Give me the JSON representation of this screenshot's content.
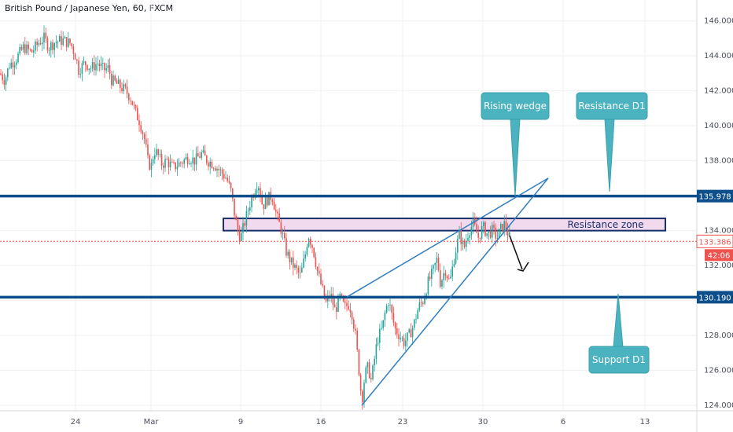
{
  "chart_data": {
    "type": "candlestick",
    "title": "British Pound / Japanese Yen, 60, FXCM",
    "ylim": [
      123.6,
      147.2
    ],
    "x_ticks": [
      "24",
      "Mar",
      "9",
      "16",
      "23",
      "30",
      "6",
      "13"
    ],
    "y_ticks": [
      "146.000",
      "144.000",
      "142.000",
      "140.000",
      "138.000",
      "136.000",
      "134.000",
      "132.000",
      "130.000",
      "128.000",
      "126.000",
      "124.000"
    ],
    "grid": true,
    "price_path": [
      [
        0,
        143.0
      ],
      [
        6,
        142.6
      ],
      [
        12,
        143.5
      ],
      [
        20,
        143.8
      ],
      [
        30,
        144.5
      ],
      [
        40,
        144.2
      ],
      [
        50,
        144.8
      ],
      [
        56,
        145.0
      ],
      [
        62,
        144.5
      ],
      [
        70,
        144.8
      ],
      [
        80,
        144.9
      ],
      [
        90,
        144.7
      ],
      [
        96,
        144.0
      ],
      [
        100,
        143.2
      ],
      [
        108,
        143.6
      ],
      [
        116,
        143.3
      ],
      [
        124,
        143.6
      ],
      [
        132,
        143.2
      ],
      [
        138,
        143.3
      ],
      [
        142,
        142.6
      ],
      [
        148,
        142.4
      ],
      [
        154,
        142.2
      ],
      [
        160,
        142.0
      ],
      [
        166,
        141.6
      ],
      [
        172,
        140.8
      ],
      [
        178,
        140.2
      ],
      [
        184,
        139.2
      ],
      [
        188,
        138.0
      ],
      [
        192,
        137.6
      ],
      [
        196,
        138.6
      ],
      [
        200,
        138.4
      ],
      [
        206,
        137.8
      ],
      [
        212,
        138.0
      ],
      [
        220,
        137.6
      ],
      [
        230,
        137.9
      ],
      [
        240,
        138.2
      ],
      [
        248,
        138.0
      ],
      [
        256,
        138.4
      ],
      [
        264,
        138.0
      ],
      [
        272,
        137.8
      ],
      [
        280,
        137.4
      ],
      [
        288,
        137.0
      ],
      [
        294,
        136.2
      ],
      [
        298,
        135.0
      ],
      [
        302,
        134.0
      ],
      [
        306,
        133.6
      ],
      [
        312,
        134.6
      ],
      [
        318,
        135.6
      ],
      [
        324,
        136.4
      ],
      [
        328,
        136.8
      ],
      [
        334,
        135.4
      ],
      [
        340,
        135.8
      ],
      [
        346,
        136.0
      ],
      [
        352,
        134.8
      ],
      [
        358,
        134.0
      ],
      [
        364,
        132.8
      ],
      [
        370,
        132.2
      ],
      [
        376,
        131.8
      ],
      [
        382,
        131.4
      ],
      [
        388,
        132.6
      ],
      [
        392,
        133.8
      ],
      [
        398,
        133.0
      ],
      [
        404,
        131.6
      ],
      [
        410,
        130.6
      ],
      [
        414,
        129.8
      ],
      [
        420,
        130.4
      ],
      [
        426,
        129.4
      ],
      [
        432,
        130.2
      ],
      [
        438,
        129.6
      ],
      [
        444,
        129.8
      ],
      [
        448,
        129.2
      ],
      [
        452,
        128.0
      ],
      [
        456,
        126.2
      ],
      [
        460,
        124.2
      ],
      [
        464,
        125.8
      ],
      [
        468,
        126.2
      ],
      [
        472,
        125.4
      ],
      [
        476,
        126.6
      ],
      [
        480,
        127.8
      ],
      [
        486,
        128.4
      ],
      [
        490,
        129.4
      ],
      [
        494,
        130.0
      ],
      [
        498,
        129.2
      ],
      [
        502,
        128.4
      ],
      [
        508,
        128.0
      ],
      [
        514,
        127.6
      ],
      [
        520,
        128.0
      ],
      [
        526,
        128.6
      ],
      [
        532,
        129.6
      ],
      [
        538,
        130.0
      ],
      [
        544,
        131.0
      ],
      [
        550,
        131.6
      ],
      [
        556,
        132.4
      ],
      [
        560,
        131.0
      ],
      [
        566,
        131.8
      ],
      [
        572,
        131.0
      ],
      [
        578,
        132.6
      ],
      [
        584,
        133.8
      ],
      [
        590,
        133.0
      ],
      [
        596,
        134.0
      ],
      [
        602,
        134.4
      ],
      [
        608,
        133.6
      ],
      [
        614,
        134.2
      ],
      [
        620,
        133.8
      ],
      [
        626,
        134.0
      ],
      [
        632,
        133.6
      ],
      [
        638,
        134.2
      ],
      [
        642,
        134.4
      ],
      [
        646,
        133.8
      ],
      [
        650,
        133.4
      ]
    ],
    "horizontal_levels": [
      {
        "value": 135.978,
        "label": "135.978",
        "color": "#0d4f8b"
      },
      {
        "value": 130.19,
        "label": "130.190",
        "color": "#0d4f8b"
      }
    ],
    "current_price": {
      "value": 133.386,
      "label": "133.386",
      "countdown": "42:06",
      "color": "#ef5350"
    },
    "annotations": [
      {
        "text": "Rising wedge",
        "kind": "callout"
      },
      {
        "text": "Resistance D1",
        "kind": "callout"
      },
      {
        "text": "Support D1",
        "kind": "callout"
      },
      {
        "text": "Resistance zone",
        "kind": "zone"
      }
    ],
    "colors": {
      "bull": "#26a69a",
      "bear": "#ef5350",
      "level": "#0d4f8b",
      "wedge": "#2f7ec1",
      "callout": "#4ab3bf",
      "zone_fill": "#f1d9ee",
      "zone_border": "#1b2f6b"
    }
  }
}
